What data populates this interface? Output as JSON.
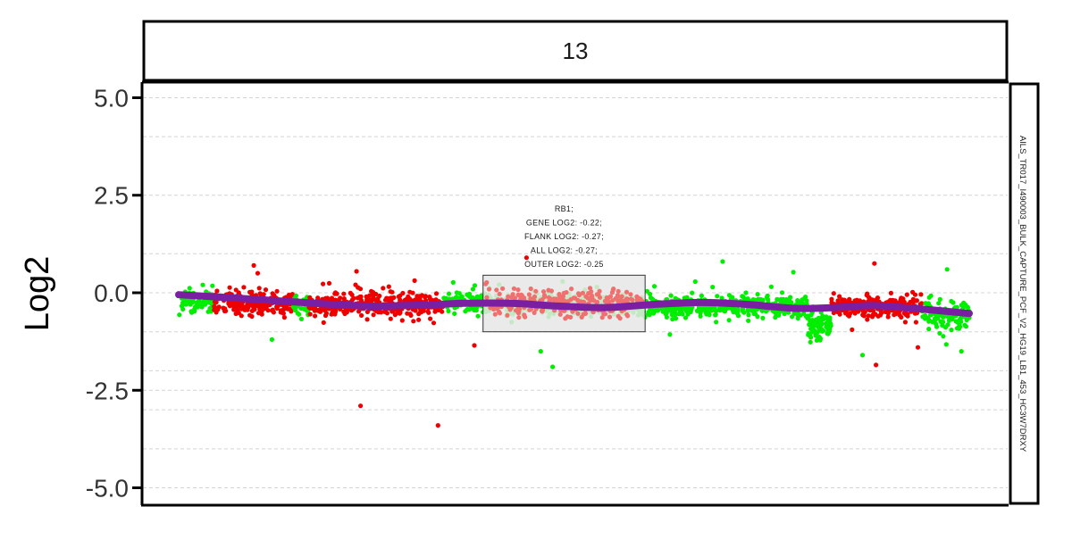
{
  "chart_data": {
    "type": "scatter",
    "facet_label": "13",
    "side_label": "AILS_TR017_I490003_BULK_CAPTURE_PCF_V2_HG19_LB1_453_HC3W7DRXY",
    "ylabel": "Log2",
    "xlim": [
      0,
      1000
    ],
    "ylim": [
      -5.4,
      5.4
    ],
    "yticks": [
      5.0,
      2.5,
      0.0,
      -2.5,
      -5.0
    ],
    "ytick_labels": [
      "5.0",
      "2.5",
      "0.0",
      "-2.5",
      "-5.0"
    ],
    "minor_gridlines": [
      4.0,
      1.0,
      -1.0,
      -2.0,
      -3.0,
      -4.0
    ],
    "grid": true,
    "colors": {
      "seg_a": "#00ee00",
      "seg_b": "#ee0000",
      "gene_points": "#f07070",
      "trend": "#7b1fa2",
      "gene_box_fill": "#e6e6e6",
      "gene_box_stroke": "#333333"
    },
    "segments": [
      {
        "x": [
          0,
          45
        ],
        "mean": -0.2,
        "spread": 0.22,
        "group": "seg_a",
        "count": 80
      },
      {
        "x": [
          45,
          145
        ],
        "mean": -0.25,
        "spread": 0.22,
        "group": "seg_b",
        "count": 230
      },
      {
        "x": [
          145,
          165
        ],
        "mean": -0.3,
        "spread": 0.2,
        "group": "seg_a",
        "count": 40
      },
      {
        "x": [
          165,
          335
        ],
        "mean": -0.3,
        "spread": 0.24,
        "group": "seg_b",
        "count": 360
      },
      {
        "x": [
          335,
          410
        ],
        "mean": -0.25,
        "spread": 0.2,
        "group": "seg_a",
        "count": 140
      },
      {
        "x": [
          410,
          585
        ],
        "mean": -0.3,
        "spread": 0.24,
        "group": "seg_a",
        "count": 360
      },
      {
        "x": [
          585,
          795
        ],
        "mean": -0.35,
        "spread": 0.22,
        "group": "seg_a",
        "count": 430
      },
      {
        "x": [
          795,
          825
        ],
        "mean": -0.85,
        "spread": 0.3,
        "group": "seg_a",
        "count": 80
      },
      {
        "x": [
          825,
          940
        ],
        "mean": -0.35,
        "spread": 0.2,
        "group": "seg_b",
        "count": 260
      },
      {
        "x": [
          940,
          1000
        ],
        "mean": -0.55,
        "spread": 0.3,
        "group": "seg_a",
        "count": 110
      }
    ],
    "outliers": [
      {
        "x": 230,
        "y": -2.9,
        "group": "seg_b"
      },
      {
        "x": 328,
        "y": -3.4,
        "group": "seg_b"
      },
      {
        "x": 225,
        "y": 0.55,
        "group": "seg_b"
      },
      {
        "x": 95,
        "y": 0.7,
        "group": "seg_b"
      },
      {
        "x": 100,
        "y": 0.5,
        "group": "seg_b"
      },
      {
        "x": 118,
        "y": -1.2,
        "group": "seg_a"
      },
      {
        "x": 473,
        "y": -1.9,
        "group": "seg_a"
      },
      {
        "x": 458,
        "y": -1.5,
        "group": "seg_a"
      },
      {
        "x": 440,
        "y": 0.9,
        "group": "seg_b"
      },
      {
        "x": 374,
        "y": -1.35,
        "group": "seg_b"
      },
      {
        "x": 688,
        "y": 0.8,
        "group": "seg_a"
      },
      {
        "x": 880,
        "y": 0.75,
        "group": "seg_b"
      },
      {
        "x": 882,
        "y": -1.85,
        "group": "seg_b"
      },
      {
        "x": 865,
        "y": -1.6,
        "group": "seg_a"
      },
      {
        "x": 935,
        "y": -1.4,
        "group": "seg_b"
      },
      {
        "x": 972,
        "y": 0.6,
        "group": "seg_a"
      },
      {
        "x": 990,
        "y": -1.5,
        "group": "seg_a"
      }
    ],
    "gene_region": {
      "x": [
        385,
        590
      ],
      "y": [
        -1.0,
        0.45
      ],
      "count": 260,
      "mean": -0.25,
      "spread": 0.32
    },
    "annotation": [
      "RB1;",
      "GENE LOG2: -0.22;",
      "FLANK LOG2: -0.27;",
      "ALL LOG2: -0.27;",
      "OUTER LOG2: -0.25"
    ],
    "trend": {
      "x": [
        0,
        60,
        120,
        180,
        240,
        300,
        360,
        420,
        480,
        540,
        600,
        660,
        720,
        780,
        830,
        880,
        940,
        1000
      ],
      "y": [
        -0.05,
        -0.12,
        -0.2,
        -0.28,
        -0.34,
        -0.32,
        -0.27,
        -0.27,
        -0.34,
        -0.38,
        -0.3,
        -0.25,
        -0.3,
        -0.4,
        -0.38,
        -0.33,
        -0.42,
        -0.53
      ]
    }
  }
}
